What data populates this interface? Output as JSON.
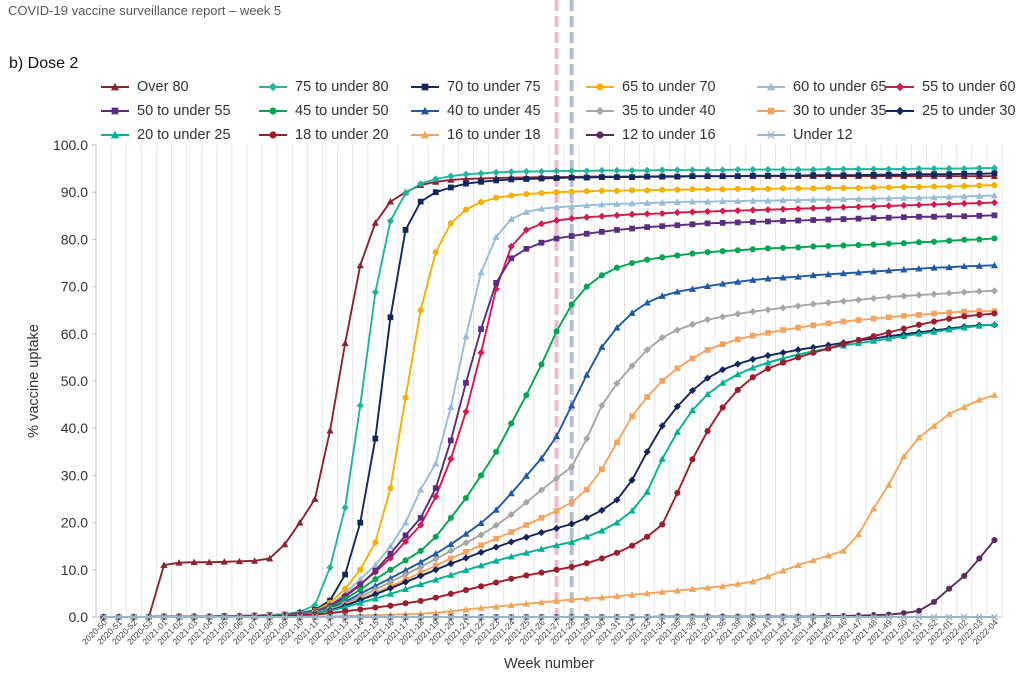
{
  "header": {
    "report_title": "COVID-19 vaccine surveillance report – week 5"
  },
  "panel": {
    "label": "b) Dose 2"
  },
  "chart_data": {
    "type": "line",
    "xlabel": "Week number",
    "ylabel": "% vaccine uptake",
    "ylim": [
      0,
      100
    ],
    "yticks": [
      "0.0",
      "10.0",
      "20.0",
      "30.0",
      "40.0",
      "50.0",
      "60.0",
      "70.0",
      "80.0",
      "90.0",
      "100.0"
    ],
    "grid": "vertical",
    "legend_position": "top",
    "reference_lines": [
      {
        "week": "2021-27",
        "color": "#f2b8d2",
        "style": "dashed"
      },
      {
        "week": "2021-28",
        "color": "#b8bdd6",
        "style": "dashed"
      }
    ],
    "x": [
      "2020-50",
      "2020-51",
      "2020-52",
      "2020-53",
      "2021-01",
      "2021-02",
      "2021-03",
      "2021-04",
      "2021-05",
      "2021-06",
      "2021-07",
      "2021-08",
      "2021-09",
      "2021-10",
      "2021-11",
      "2021-12",
      "2021-13",
      "2021-14",
      "2021-15",
      "2021-16",
      "2021-17",
      "2021-18",
      "2021-19",
      "2021-20",
      "2021-21",
      "2021-22",
      "2021-23",
      "2021-24",
      "2021-25",
      "2021-26",
      "2021-27",
      "2021-28",
      "2021-29",
      "2021-30",
      "2021-31",
      "2021-32",
      "2021-33",
      "2021-34",
      "2021-35",
      "2021-36",
      "2021-37",
      "2021-38",
      "2021-39",
      "2021-40",
      "2021-41",
      "2021-42",
      "2021-43",
      "2021-44",
      "2021-45",
      "2021-46",
      "2021-47",
      "2021-48",
      "2021-49",
      "2021-50",
      "2021-51",
      "2021-52",
      "2022-01",
      "2022-02",
      "2022-03",
      "2022-04"
    ],
    "series": [
      {
        "name": "Over 80",
        "color": "#8b2332",
        "marker": "triangle",
        "values": [
          0,
          0,
          0,
          0,
          11,
          11.5,
          11.6,
          11.6,
          11.7,
          11.8,
          11.9,
          12.4,
          15.4,
          20,
          25,
          39.5,
          58,
          74.5,
          83.5,
          88,
          90,
          91.5,
          92.2,
          92.6,
          92.8,
          92.9,
          93,
          93.1,
          93.1,
          93.2,
          93.2,
          93.2,
          93.3,
          93.3,
          93.3,
          93.3,
          93.3,
          93.4,
          93.4,
          93.4,
          93.4,
          93.4,
          93.4,
          93.4,
          93.4,
          93.4,
          93.4,
          93.4,
          93.4,
          93.4,
          93.4,
          93.4,
          93.4,
          93.4,
          93.4,
          93.4,
          93.4,
          93.4,
          93.4,
          93.4
        ]
      },
      {
        "name": "75 to under 80",
        "color": "#1fb69b",
        "marker": "diamond",
        "values": [
          0,
          0,
          0,
          0,
          0.1,
          0.1,
          0.1,
          0.1,
          0.2,
          0.2,
          0.3,
          0.4,
          0.6,
          1.1,
          2.5,
          10.5,
          23.2,
          44.8,
          68.8,
          83.9,
          89.8,
          91.8,
          92.8,
          93.4,
          93.8,
          94,
          94.2,
          94.3,
          94.4,
          94.4,
          94.5,
          94.5,
          94.5,
          94.6,
          94.6,
          94.6,
          94.6,
          94.7,
          94.7,
          94.7,
          94.7,
          94.7,
          94.8,
          94.8,
          94.8,
          94.8,
          94.8,
          94.8,
          94.9,
          94.9,
          94.9,
          94.9,
          94.9,
          94.9,
          95,
          95,
          95,
          95,
          95.1,
          95.1
        ]
      },
      {
        "name": "70 to under 75",
        "color": "#10285f",
        "marker": "square",
        "values": [
          0,
          0,
          0,
          0,
          0.1,
          0.1,
          0.1,
          0.1,
          0.2,
          0.2,
          0.3,
          0.4,
          0.5,
          0.8,
          1.5,
          3.5,
          9,
          20,
          37.8,
          63.5,
          82,
          88,
          90,
          91,
          91.8,
          92.2,
          92.5,
          92.7,
          92.8,
          92.9,
          93,
          93.1,
          93.1,
          93.2,
          93.2,
          93.2,
          93.3,
          93.3,
          93.3,
          93.4,
          93.4,
          93.4,
          93.4,
          93.5,
          93.5,
          93.5,
          93.5,
          93.6,
          93.6,
          93.6,
          93.6,
          93.7,
          93.7,
          93.7,
          93.8,
          93.8,
          93.8,
          93.9,
          93.9,
          94
        ]
      },
      {
        "name": "65 to under 70",
        "color": "#f5b000",
        "marker": "circle",
        "values": [
          0,
          0,
          0,
          0,
          0.1,
          0.1,
          0.1,
          0.1,
          0.2,
          0.2,
          0.3,
          0.4,
          0.5,
          0.8,
          1.3,
          3,
          6,
          10,
          15.8,
          27.3,
          46.5,
          65,
          77.3,
          83.4,
          86.3,
          87.9,
          88.8,
          89.3,
          89.6,
          89.8,
          90,
          90.1,
          90.2,
          90.3,
          90.3,
          90.4,
          90.4,
          90.5,
          90.5,
          90.6,
          90.6,
          90.6,
          90.7,
          90.7,
          90.7,
          90.8,
          90.8,
          90.8,
          90.9,
          90.9,
          90.9,
          91,
          91,
          91.1,
          91.1,
          91.2,
          91.2,
          91.3,
          91.4,
          91.5
        ]
      },
      {
        "name": "60 to under 65",
        "color": "#96bcd7",
        "marker": "triangle",
        "values": [
          0,
          0,
          0,
          0,
          0.1,
          0.1,
          0.1,
          0.1,
          0.2,
          0.2,
          0.3,
          0.4,
          0.5,
          0.8,
          1.2,
          2.6,
          5,
          8,
          11,
          15,
          20,
          27,
          32.5,
          44.5,
          59.5,
          73,
          80.5,
          84.3,
          85.8,
          86.5,
          86.8,
          87,
          87.2,
          87.4,
          87.5,
          87.6,
          87.7,
          87.8,
          87.9,
          88,
          88,
          88.1,
          88.1,
          88.2,
          88.2,
          88.3,
          88.3,
          88.4,
          88.4,
          88.5,
          88.6,
          88.6,
          88.7,
          88.8,
          88.8,
          88.9,
          89,
          89.1,
          89.2,
          89.3
        ]
      },
      {
        "name": "55 to under 60",
        "color": "#d6184f",
        "marker": "diamond",
        "values": [
          0,
          0,
          0,
          0,
          0.1,
          0.1,
          0.1,
          0.1,
          0.2,
          0.2,
          0.3,
          0.4,
          0.5,
          0.8,
          1.2,
          2.4,
          4.5,
          7,
          9.5,
          12.5,
          16,
          19.5,
          25.5,
          33.5,
          43.5,
          56,
          69.5,
          78.5,
          82,
          83.3,
          84,
          84.4,
          84.7,
          84.9,
          85.1,
          85.3,
          85.4,
          85.5,
          85.7,
          85.8,
          85.9,
          86,
          86.1,
          86.2,
          86.3,
          86.4,
          86.5,
          86.6,
          86.7,
          86.8,
          86.9,
          87,
          87.1,
          87.2,
          87.3,
          87.4,
          87.5,
          87.6,
          87.7,
          87.8
        ]
      },
      {
        "name": "50 to under 55",
        "color": "#5c2c82",
        "marker": "square",
        "values": [
          0,
          0,
          0,
          0,
          0.1,
          0.1,
          0.1,
          0.1,
          0.2,
          0.2,
          0.3,
          0.4,
          0.5,
          0.8,
          1.1,
          2.2,
          4.3,
          6.8,
          9.8,
          13.4,
          17.3,
          21,
          27.3,
          37.4,
          49.6,
          61,
          70.8,
          76,
          78,
          79.3,
          80.2,
          80.7,
          81.2,
          81.6,
          82,
          82.3,
          82.6,
          82.8,
          83,
          83.2,
          83.4,
          83.5,
          83.6,
          83.7,
          83.8,
          83.9,
          84,
          84.1,
          84.2,
          84.3,
          84.4,
          84.5,
          84.6,
          84.7,
          84.8,
          84.8,
          84.9,
          84.9,
          85,
          85.1
        ]
      },
      {
        "name": "45 to under 50",
        "color": "#00a651",
        "marker": "circle",
        "values": [
          0,
          0,
          0,
          0,
          0.1,
          0.1,
          0.1,
          0.1,
          0.2,
          0.2,
          0.3,
          0.4,
          0.5,
          0.7,
          1,
          2,
          3.8,
          5.8,
          8,
          10,
          12,
          14,
          17,
          21,
          25.2,
          30,
          35,
          41,
          47,
          53.5,
          60.5,
          66.2,
          70,
          72.4,
          74,
          75,
          75.7,
          76.2,
          76.6,
          77,
          77.3,
          77.5,
          77.7,
          77.9,
          78.1,
          78.2,
          78.3,
          78.5,
          78.6,
          78.7,
          78.8,
          78.9,
          79.1,
          79.2,
          79.4,
          79.5,
          79.7,
          79.9,
          80,
          80.2
        ]
      },
      {
        "name": "40 to under 45",
        "color": "#1f5aa8",
        "marker": "triangle",
        "values": [
          0,
          0,
          0,
          0,
          0.1,
          0.1,
          0.1,
          0.1,
          0.2,
          0.2,
          0.3,
          0.4,
          0.5,
          0.7,
          1,
          1.8,
          3.2,
          4.9,
          6.6,
          8.2,
          9.9,
          11.6,
          13.4,
          15.4,
          17.6,
          19.9,
          22.7,
          26.2,
          29.9,
          33.6,
          38.3,
          44.8,
          51.3,
          57.2,
          61.3,
          64.4,
          66.6,
          68,
          68.9,
          69.5,
          70.1,
          70.6,
          71,
          71.4,
          71.7,
          71.9,
          72.1,
          72.4,
          72.6,
          72.8,
          73,
          73.2,
          73.4,
          73.6,
          73.8,
          74,
          74.1,
          74.3,
          74.4,
          74.5
        ]
      },
      {
        "name": "35 to under 40",
        "color": "#a6a6a6",
        "marker": "diamond",
        "values": [
          0,
          0,
          0,
          0,
          0.1,
          0.1,
          0.1,
          0.1,
          0.2,
          0.2,
          0.3,
          0.4,
          0.5,
          0.6,
          0.9,
          1.6,
          2.8,
          4.3,
          5.8,
          7.4,
          9,
          10.6,
          12.3,
          14,
          15.7,
          17.4,
          19.4,
          21.7,
          24.3,
          26.9,
          29.4,
          31.8,
          37.8,
          44.8,
          49.5,
          53.2,
          56.6,
          59.2,
          60.8,
          62,
          63,
          63.6,
          64.2,
          64.7,
          65.1,
          65.5,
          65.9,
          66.3,
          66.6,
          66.9,
          67.2,
          67.5,
          67.8,
          68,
          68.2,
          68.4,
          68.6,
          68.8,
          69,
          69.1
        ]
      },
      {
        "name": "30 to under 35",
        "color": "#f4a460",
        "marker": "square",
        "values": [
          0,
          0,
          0,
          0,
          0.1,
          0.1,
          0.1,
          0.1,
          0.1,
          0.2,
          0.2,
          0.3,
          0.4,
          0.6,
          0.9,
          1.5,
          2.6,
          3.8,
          5.1,
          6.5,
          7.9,
          9.4,
          10.9,
          12.4,
          13.8,
          15.2,
          16.6,
          18,
          19.5,
          21,
          22.5,
          24.3,
          27,
          31.3,
          37,
          42.5,
          46.6,
          50,
          52.7,
          54.8,
          56.6,
          57.8,
          58.8,
          59.6,
          60.2,
          60.8,
          61.3,
          61.8,
          62.2,
          62.6,
          62.9,
          63.2,
          63.5,
          63.8,
          64,
          64.3,
          64.5,
          64.7,
          64.8,
          64.8
        ]
      },
      {
        "name": "25 to under 30",
        "color": "#12255e",
        "marker": "diamond",
        "values": [
          0,
          0,
          0,
          0,
          0.1,
          0.1,
          0.1,
          0.1,
          0.1,
          0.2,
          0.2,
          0.3,
          0.4,
          0.6,
          0.8,
          1.4,
          2.4,
          3.6,
          4.8,
          6.1,
          7.4,
          8.7,
          10,
          11.3,
          12.5,
          13.7,
          14.8,
          15.9,
          16.9,
          17.9,
          18.8,
          19.7,
          21,
          22.6,
          24.8,
          29,
          35,
          40.5,
          44.6,
          48,
          50.6,
          52.4,
          53.6,
          54.6,
          55.4,
          56,
          56.6,
          57.1,
          57.6,
          58.1,
          58.6,
          59,
          59.5,
          59.9,
          60.3,
          60.7,
          61.1,
          61.5,
          61.8,
          61.9
        ]
      },
      {
        "name": "20 to under 25",
        "color": "#00b294",
        "marker": "triangle",
        "values": [
          0,
          0,
          0,
          0,
          0.1,
          0.1,
          0.1,
          0.1,
          0.1,
          0.2,
          0.2,
          0.3,
          0.4,
          0.5,
          0.8,
          1.3,
          2.1,
          3,
          3.9,
          4.9,
          5.9,
          6.9,
          7.9,
          8.9,
          9.9,
          10.9,
          11.9,
          12.8,
          13.6,
          14.4,
          15.2,
          15.9,
          17,
          18.3,
          20,
          22.5,
          26.5,
          33.5,
          39.2,
          43.8,
          47.2,
          49.6,
          51.4,
          52.8,
          53.9,
          54.8,
          55.6,
          56.3,
          56.9,
          57.5,
          58,
          58.5,
          59,
          59.5,
          60,
          60.4,
          60.9,
          61.3,
          61.7,
          62
        ]
      },
      {
        "name": "18 to under 20",
        "color": "#9e1c2c",
        "marker": "circle",
        "values": [
          0,
          0,
          0,
          0,
          0.1,
          0.1,
          0.1,
          0.1,
          0.1,
          0.1,
          0.2,
          0.2,
          0.3,
          0.4,
          0.5,
          0.8,
          1.2,
          1.6,
          2,
          2.4,
          2.9,
          3.4,
          4.1,
          4.9,
          5.7,
          6.5,
          7.3,
          8.1,
          8.8,
          9.4,
          10,
          10.6,
          11.4,
          12.4,
          13.6,
          15.1,
          17,
          19.6,
          26.3,
          33.4,
          39.4,
          44.4,
          48.1,
          50.8,
          52.6,
          53.9,
          55,
          56,
          56.9,
          57.8,
          58.7,
          59.5,
          60.3,
          61.1,
          61.9,
          62.6,
          63.2,
          63.7,
          64,
          64.3
        ]
      },
      {
        "name": "16 to under 18",
        "color": "#f2a65a",
        "marker": "triangle",
        "values": [
          0,
          0,
          0,
          0,
          0,
          0,
          0,
          0,
          0,
          0,
          0,
          0,
          0,
          0,
          0.1,
          0.1,
          0.2,
          0.3,
          0.4,
          0.5,
          0.6,
          0.7,
          0.9,
          1.2,
          1.6,
          1.9,
          2.2,
          2.5,
          2.8,
          3.1,
          3.4,
          3.7,
          3.9,
          4.1,
          4.4,
          4.7,
          5,
          5.3,
          5.6,
          5.9,
          6.2,
          6.5,
          7,
          7.5,
          8.6,
          9.8,
          11,
          12,
          13,
          14,
          17.5,
          23,
          28,
          34,
          38,
          40.5,
          43,
          44.5,
          46,
          47
        ]
      },
      {
        "name": "12 to under 16",
        "color": "#5b2a5e",
        "marker": "circle",
        "values": [
          0,
          0,
          0,
          0,
          0,
          0,
          0,
          0,
          0,
          0,
          0,
          0,
          0,
          0,
          0,
          0,
          0,
          0,
          0,
          0,
          0,
          0,
          0,
          0,
          0,
          0,
          0,
          0,
          0,
          0,
          0,
          0,
          0,
          0,
          0,
          0,
          0,
          0.1,
          0.1,
          0.1,
          0.1,
          0.1,
          0.1,
          0.1,
          0.1,
          0.1,
          0.1,
          0.1,
          0.2,
          0.2,
          0.3,
          0.4,
          0.5,
          0.8,
          1.3,
          3.2,
          6,
          8.7,
          12.4,
          16.3
        ]
      },
      {
        "name": "Under 12",
        "color": "#9db3c8",
        "marker": "x",
        "values": [
          0,
          0,
          0,
          0,
          0,
          0,
          0,
          0,
          0,
          0,
          0,
          0,
          0,
          0,
          0,
          0,
          0,
          0,
          0,
          0,
          0,
          0,
          0,
          0,
          0,
          0,
          0,
          0,
          0,
          0,
          0,
          0,
          0,
          0,
          0,
          0,
          0,
          0,
          0,
          0,
          0,
          0,
          0,
          0,
          0,
          0,
          0,
          0,
          0,
          0,
          0,
          0,
          0,
          0,
          0,
          0,
          0,
          0,
          0,
          0
        ]
      }
    ]
  }
}
